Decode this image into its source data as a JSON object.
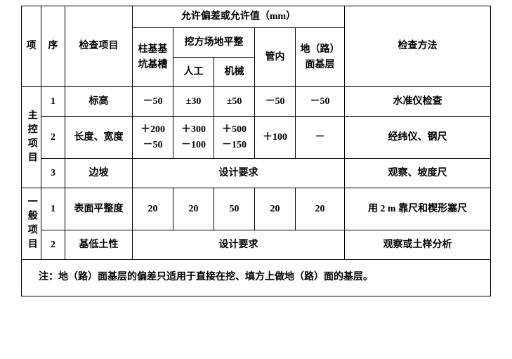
{
  "header": {
    "group_title": "允许偏差或允许值（mm）",
    "col_proj": "项",
    "col_seq": "序",
    "col_item": "检查项目",
    "col_1": "柱基基坑基槽",
    "col_2_top": "挖方场地平整",
    "col_2_a": "人工",
    "col_2_b": "机械",
    "col_3": "管内",
    "col_4": "地（路）面基层",
    "col_method": "检查方法"
  },
  "groups": {
    "g1": "主控项目",
    "g2": "一般项目"
  },
  "rows": {
    "r1": {
      "seq": "1",
      "item": "标高",
      "v1": "－50",
      "v2": "±30",
      "v3": "±50",
      "v4": "－50",
      "v5": "－50",
      "method": "水准仪检查"
    },
    "r2": {
      "seq": "2",
      "item": "长度、宽度",
      "v1_a": "＋200",
      "v1_b": "－50",
      "v2_a": "＋300",
      "v2_b": "－100",
      "v3_a": "＋500",
      "v3_b": "－150",
      "v4": "＋100",
      "v5": "－",
      "method": "经纬仪、钢尺"
    },
    "r3": {
      "seq": "3",
      "item": "边坡",
      "span": "设计要求",
      "method": "观察、坡度尺"
    },
    "r4": {
      "seq": "1",
      "item": "表面平整度",
      "v1": "20",
      "v2": "20",
      "v3": "50",
      "v4": "20",
      "v5": "20",
      "method": "用 2 m 靠尺和楔形塞尺"
    },
    "r5": {
      "seq": "2",
      "item": "基低土性",
      "span": "设计要求",
      "method": "观察或土样分析"
    }
  },
  "note": "注：地（路）面基层的偏差只适用于直接在挖、填方上做地（路）面的基层。"
}
